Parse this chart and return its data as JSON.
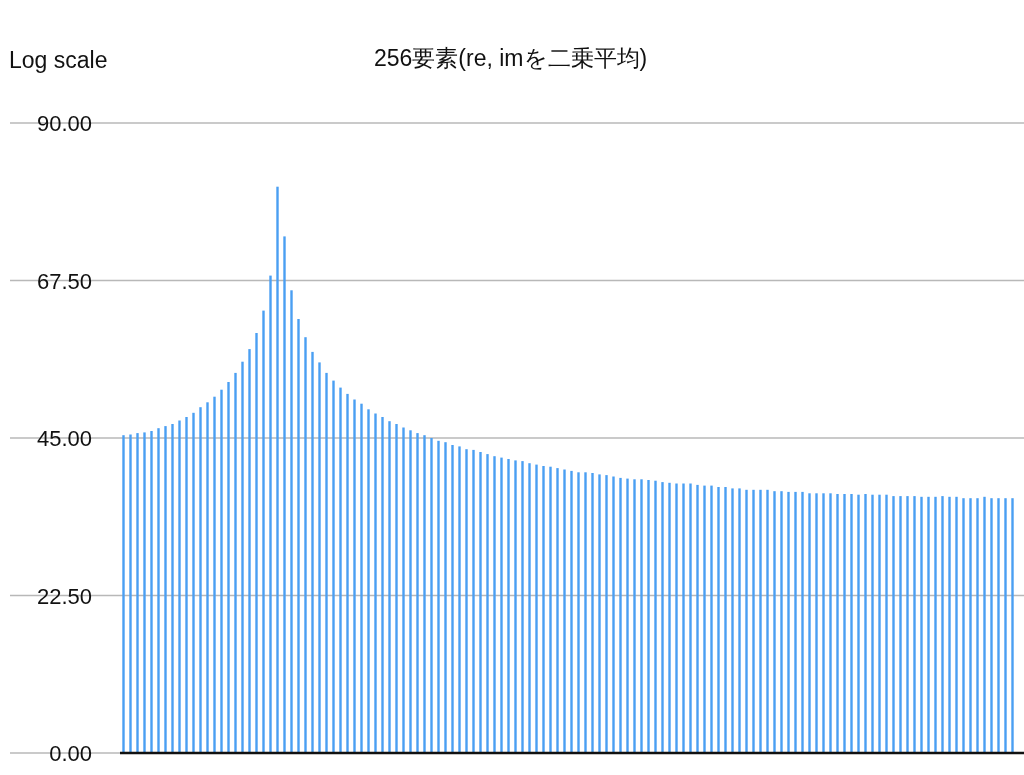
{
  "chart_data": {
    "type": "bar",
    "title": "256要素(re, imを二乗平均)",
    "annotations": [
      "Log scale"
    ],
    "categories": [
      null,
      null,
      null,
      null,
      null,
      null,
      null,
      null,
      null,
      null,
      null,
      null,
      null,
      null,
      null,
      null,
      null,
      null,
      null,
      null,
      null,
      null,
      null,
      null,
      null,
      null,
      null,
      null,
      null,
      null,
      null,
      null,
      null,
      null,
      null,
      null,
      null,
      null,
      null,
      null,
      null,
      null,
      null,
      null,
      null,
      null,
      null,
      null,
      null,
      null,
      null,
      null,
      null,
      null,
      null,
      null,
      null,
      null,
      null,
      null,
      null,
      null,
      null,
      null,
      null,
      null,
      null,
      null,
      null,
      null,
      null,
      null,
      null,
      null,
      null,
      null,
      null,
      null,
      null,
      null,
      null,
      null,
      null,
      null,
      null,
      null,
      null,
      null,
      null,
      null,
      null,
      null,
      null,
      null,
      null,
      null,
      null,
      null,
      null,
      null,
      null,
      null,
      null,
      null,
      null,
      null,
      null,
      null,
      null,
      null,
      null,
      null,
      null,
      null,
      null,
      null,
      null,
      null,
      null,
      null,
      null,
      null,
      null,
      null,
      null,
      null,
      null,
      null
    ],
    "values": [
      45.4,
      45.5,
      45.7,
      45.8,
      46.0,
      46.4,
      46.7,
      47.0,
      47.5,
      48.0,
      48.6,
      49.4,
      50.1,
      50.9,
      51.9,
      53.0,
      54.3,
      55.9,
      57.7,
      60.0,
      63.2,
      68.2,
      80.9,
      73.8,
      66.1,
      62.0,
      59.4,
      57.3,
      55.8,
      54.3,
      53.2,
      52.2,
      51.3,
      50.5,
      49.9,
      49.1,
      48.5,
      48.0,
      47.4,
      47.0,
      46.5,
      46.1,
      45.7,
      45.4,
      45.0,
      44.6,
      44.4,
      44.0,
      43.8,
      43.4,
      43.3,
      43.0,
      42.7,
      42.4,
      42.2,
      42.0,
      41.8,
      41.7,
      41.4,
      41.2,
      41.0,
      40.9,
      40.7,
      40.5,
      40.3,
      40.1,
      40.1,
      40.0,
      39.8,
      39.7,
      39.5,
      39.3,
      39.2,
      39.1,
      39.1,
      39.0,
      38.9,
      38.7,
      38.6,
      38.5,
      38.5,
      38.5,
      38.3,
      38.2,
      38.2,
      38.0,
      38.0,
      37.8,
      37.8,
      37.6,
      37.6,
      37.6,
      37.6,
      37.4,
      37.4,
      37.3,
      37.3,
      37.3,
      37.1,
      37.1,
      37.1,
      37.1,
      37.0,
      37.0,
      37.0,
      36.9,
      37.0,
      36.9,
      36.9,
      36.9,
      36.7,
      36.7,
      36.7,
      36.7,
      36.6,
      36.6,
      36.6,
      36.7,
      36.6,
      36.6,
      36.4,
      36.4,
      36.4,
      36.6,
      36.4,
      36.4,
      36.4,
      36.4
    ],
    "color": "#4a9ff2",
    "ylim": [
      0,
      90
    ],
    "yticks": [
      {
        "value": 0,
        "label": "0.00"
      },
      {
        "value": 22.5,
        "label": "22.50"
      },
      {
        "value": 45,
        "label": "45.00"
      },
      {
        "value": 67.5,
        "label": "67.50"
      },
      {
        "value": 90,
        "label": "90.00"
      }
    ],
    "grid": "y"
  }
}
